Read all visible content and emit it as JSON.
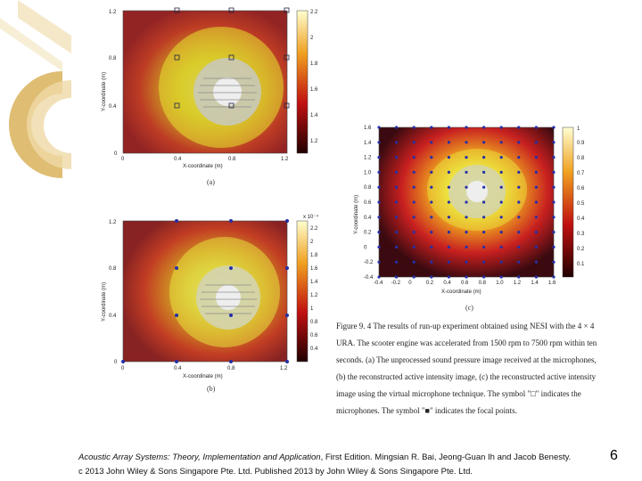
{
  "figure_a": {
    "label": "(a)",
    "xlabel": "X-coordinate (m)",
    "ylabel": "Y-coordinate (m)",
    "xticks": [
      "0",
      "0.4",
      "0.8",
      "1.2"
    ],
    "yticks": [
      "0",
      "0.4",
      "0.8",
      "1.2"
    ],
    "colorbar_ticks": [
      "2.2",
      "2",
      "1.8",
      "1.6",
      "1.4",
      "1.2"
    ]
  },
  "figure_b": {
    "label": "(b)",
    "xlabel": "X-coordinate (m)",
    "ylabel": "Y-coordinate (m)",
    "xticks": [
      "0",
      "0.4",
      "0.8",
      "1.2"
    ],
    "yticks": [
      "0",
      "0.4",
      "0.8",
      "1.2"
    ],
    "colorbar_ticks": [
      "2.2",
      "2",
      "1.8",
      "1.6",
      "1.4",
      "1.2",
      "1",
      "0.8",
      "0.6",
      "0.4"
    ],
    "colorbar_exponent": "x 10⁻⁴"
  },
  "figure_c": {
    "label": "(c)",
    "xlabel": "X-coordinate (m)",
    "ylabel": "Y-coordinate (m)",
    "xticks": [
      "-0.4",
      "-0.2",
      "0",
      "0.2",
      "0.4",
      "0.6",
      "0.8",
      "1.0",
      "1.2",
      "1.4",
      "1.6"
    ],
    "yticks": [
      "-0.4",
      "-0.2",
      "0",
      "0.2",
      "0.4",
      "0.6",
      "0.8",
      "1.0",
      "1.2",
      "1.4",
      "1.6"
    ],
    "colorbar_ticks": [
      "1",
      "0.9",
      "0.8",
      "0.7",
      "0.6",
      "0.5",
      "0.4",
      "0.3",
      "0.2",
      "0.1"
    ]
  },
  "caption": {
    "figure_number": "Figure 9. 4",
    "text_1": "The results of run-up experiment obtained using NESI with the 4 × 4 URA. The scooter engine was accelerated from 1500 rpm to 7500 rpm within ten seconds. (a) The unprocessed sound pressure image received at the microphones, (b) the reconstructed active intensity image, (c) the reconstructed active intensity image using the virtual microphone technique. The symbol \"□\" indicates the microphones. The symbol \"",
    "symbol": "■",
    "text_2": "\" indicates the focal points."
  },
  "credit": {
    "title": "Acoustic Array Systems: Theory, Implementation and Application",
    "line1_rest": ", First Edition. Mingsian R. Bai, Jeong-Guan Ih and Jacob Benesty.",
    "line2": "c 2013 John Wiley & Sons Singapore Pte. Ltd. Published 2013 by John Wiley & Sons Singapore Pte. Ltd."
  },
  "page_number": "6",
  "colors": {
    "deco_gold": "#d9b25a",
    "deco_gold_light": "#efd9a6"
  }
}
